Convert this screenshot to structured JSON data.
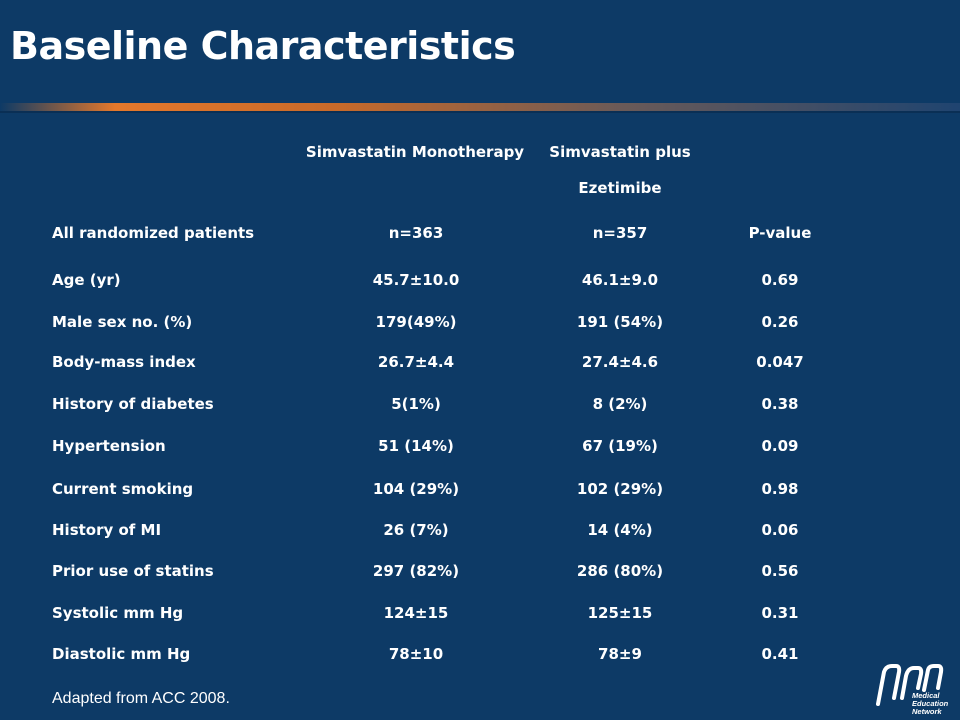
{
  "slide": {
    "title": "Baseline Characteristics",
    "footnote": "Adapted from ACC 2008.",
    "logo_text": [
      "Medical",
      "Education",
      "Network"
    ]
  },
  "table": {
    "headers": {
      "col1": "Simvastatin Monotherapy",
      "col2_line1": "Simvastatin plus",
      "col2_line2": "Ezetimibe"
    },
    "subheader": {
      "label": "All randomized patients",
      "col1": "n=363",
      "col2": "n=357",
      "col3": "P-value"
    },
    "rows": [
      {
        "label": "Age (yr)",
        "col1": "45.7±10.0",
        "col2": "46.1±9.0",
        "col3": "0.69"
      },
      {
        "label": "Male sex no. (%)",
        "col1": "179(49%)",
        "col2": "191 (54%)",
        "col3": "0.26"
      },
      {
        "label": "Body-mass index",
        "col1": "26.7±4.4",
        "col2": "27.4±4.6",
        "col3": "0.047"
      },
      {
        "label": "History of diabetes",
        "col1": "5(1%)",
        "col2": "8 (2%)",
        "col3": "0.38"
      },
      {
        "label": "Hypertension",
        "col1": "51 (14%)",
        "col2": "67 (19%)",
        "col3": "0.09"
      },
      {
        "label": "Current smoking",
        "col1": "104 (29%)",
        "col2": "102 (29%)",
        "col3": "0.98"
      },
      {
        "label": "History of MI",
        "col1": "26 (7%)",
        "col2": "14 (4%)",
        "col3": "0.06"
      },
      {
        "label": "Prior use of statins",
        "col1": "297 (82%)",
        "col2": "286 (80%)",
        "col3": "0.56"
      },
      {
        "label": "Systolic  mm Hg",
        "col1": "124±15",
        "col2": "125±15",
        "col3": "0.31"
      },
      {
        "label": "Diastolic mm Hg",
        "col1": "78±10",
        "col2": "78±9",
        "col3": "0.41"
      }
    ]
  },
  "colors": {
    "background": "#0d3a66",
    "accent_rule": "#e4782b",
    "text": "#ffffff"
  }
}
